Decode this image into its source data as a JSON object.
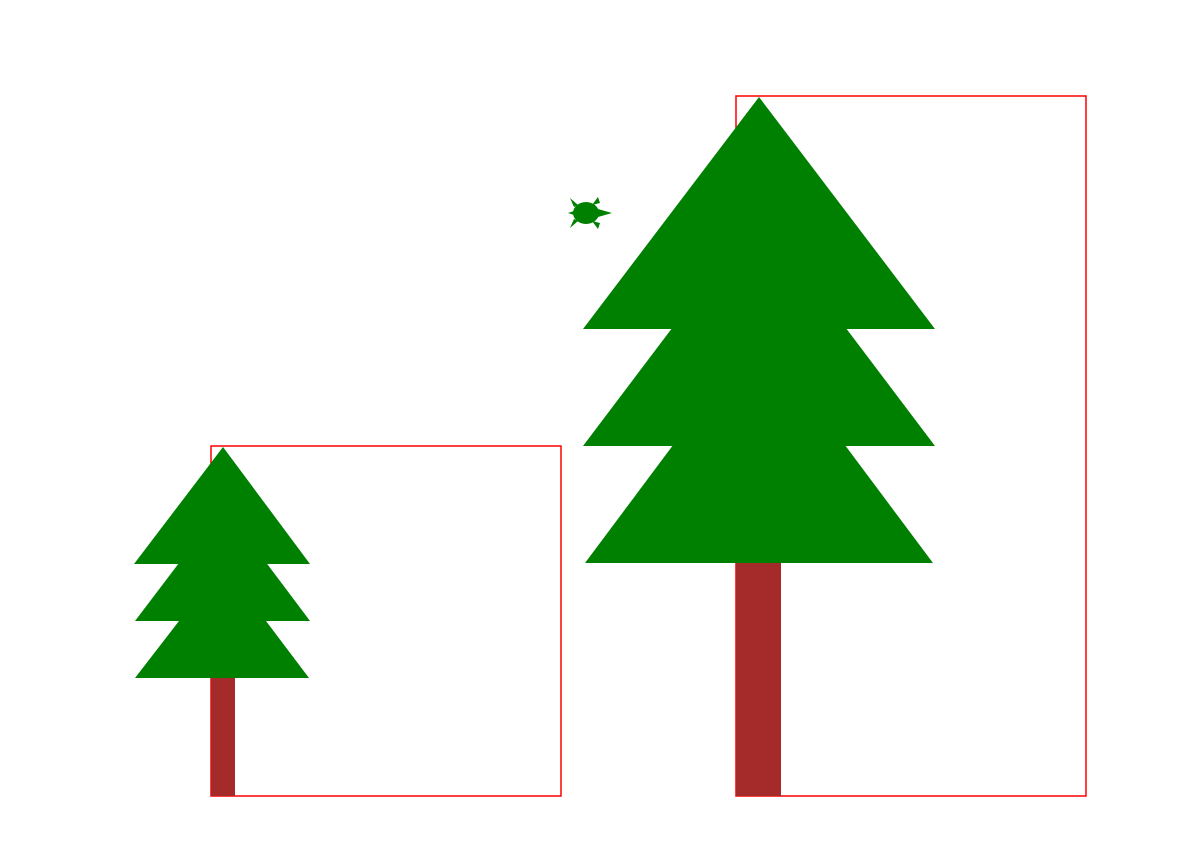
{
  "scene": {
    "background": "#ffffff",
    "colors": {
      "foliage": "#008000",
      "trunk": "#a52a2a",
      "frame": "#ff0000",
      "turtle": "#008000"
    },
    "trees": [
      {
        "name": "small-tree",
        "foliage_tiers": 3
      },
      {
        "name": "large-tree",
        "foliage_tiers": 3
      }
    ],
    "turtle_icon": "turtle-cursor-icon"
  }
}
